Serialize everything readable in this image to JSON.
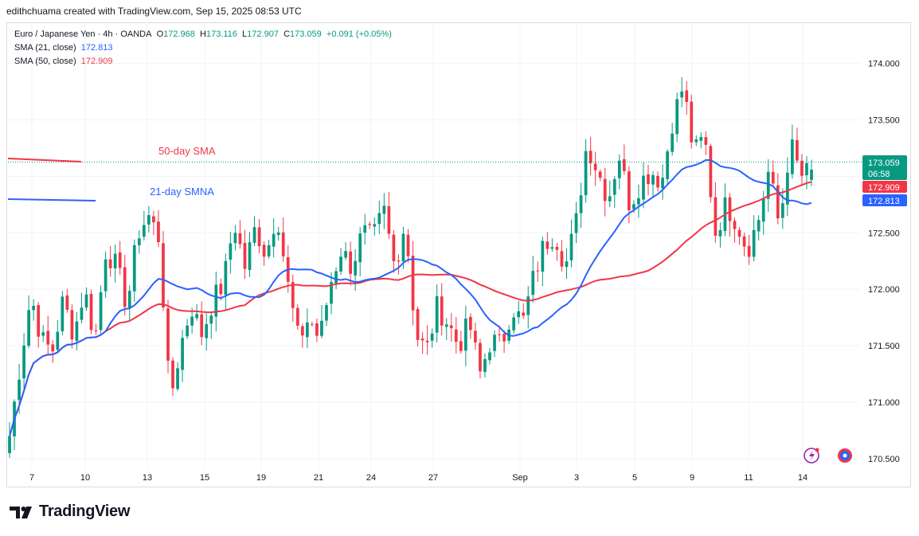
{
  "header": {
    "author_line": "edithchuama created with TradingView.com, Sep 15, 2025 08:53 UTC"
  },
  "legend": {
    "symbol": "Euro / Japanese Yen · 4h · OANDA",
    "o_label": "O",
    "o": "172.968",
    "h_label": "H",
    "h": "173.116",
    "l_label": "L",
    "l": "172.907",
    "c_label": "C",
    "c": "173.059",
    "change": "+0.091 (+0.05%)",
    "sma21_label": "SMA (21, close)",
    "sma21_value": "172.813",
    "sma50_label": "SMA (50, close)",
    "sma50_value": "172.909"
  },
  "annotations": {
    "sma50_text": "50-day SMA",
    "sma21_text": "21-day SMNA"
  },
  "price_tags": {
    "last": "173.059",
    "countdown": "06:58",
    "sma50": "172.909",
    "sma21": "172.813"
  },
  "brand": {
    "name": "TradingView",
    "logo_icon": "tradingview-logo-icon"
  },
  "tool_icons": [
    "lightning-icon",
    "globe-icon"
  ],
  "colors": {
    "up": "#089981",
    "down": "#f23645",
    "sma21": "#2962ff",
    "sma50": "#f23645",
    "grid": "#f0f3fa"
  },
  "chart_data": {
    "type": "candlestick",
    "title": "Euro / Japanese Yen · 4h · OANDA",
    "ylim": [
      170.4,
      174.35
    ],
    "y_ticks": [
      "170.500",
      "171.000",
      "171.500",
      "172.000",
      "172.500",
      "173.000",
      "173.500",
      "174.000"
    ],
    "x_ticks": [
      "7",
      "10",
      "13",
      "15",
      "19",
      "21",
      "24",
      "27",
      "Sep",
      "3",
      "5",
      "9",
      "11",
      "14"
    ],
    "grid": true,
    "close_path": [
      170.7,
      171.35,
      171.95,
      171.55,
      171.45,
      171.9,
      171.6,
      172.0,
      171.55,
      172.35,
      172.2,
      171.85,
      172.5,
      172.65,
      172.45,
      171.0,
      171.5,
      171.85,
      171.6,
      171.9,
      172.05,
      172.6,
      172.2,
      172.55,
      172.3,
      172.7,
      172.05,
      171.55,
      171.75,
      171.55,
      172.05,
      172.35,
      172.2,
      172.5,
      172.45,
      172.7,
      172.2,
      172.6,
      171.6,
      171.45,
      171.85,
      171.7,
      171.5,
      171.7,
      171.25,
      171.55,
      171.5,
      171.85,
      171.7,
      172.1,
      172.4,
      172.5,
      172.2,
      172.6,
      173.3,
      173.05,
      172.8,
      173.2,
      172.75,
      172.95,
      173.05,
      172.95,
      173.5,
      173.8,
      173.2,
      173.35,
      172.5,
      172.75,
      172.6,
      172.35,
      172.6,
      173.05,
      172.55,
      173.3,
      173.0,
      173.05
    ]
  }
}
